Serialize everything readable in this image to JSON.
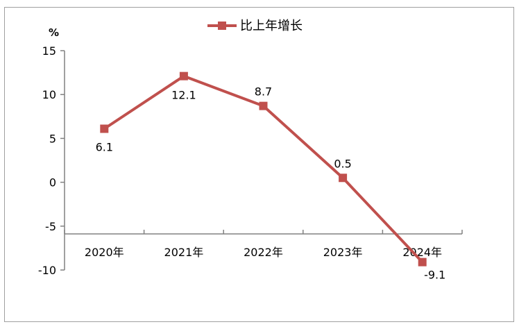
{
  "chart_data": {
    "type": "line",
    "categories": [
      "2020年",
      "2021年",
      "2022年",
      "2023年",
      "2024年"
    ],
    "series": [
      {
        "name": "比上年增长",
        "values": [
          6.1,
          12.1,
          8.7,
          0.5,
          -9.1
        ],
        "labels": [
          "6.1",
          "12.1",
          "8.7",
          "0.5",
          "-9.1"
        ],
        "color": "#C0504D"
      }
    ],
    "ylabel": "%",
    "ylim": [
      -10,
      15
    ],
    "yticks": [
      15,
      10,
      5,
      0,
      -5,
      -10
    ],
    "ytick_labels": [
      "15",
      "10",
      "5",
      "0",
      "-5",
      "-10"
    ],
    "grid": false,
    "legend_position": "top-center",
    "line_color": "#C0504D",
    "axis_color": "#808080",
    "frame_color": "#A0A0A0"
  }
}
